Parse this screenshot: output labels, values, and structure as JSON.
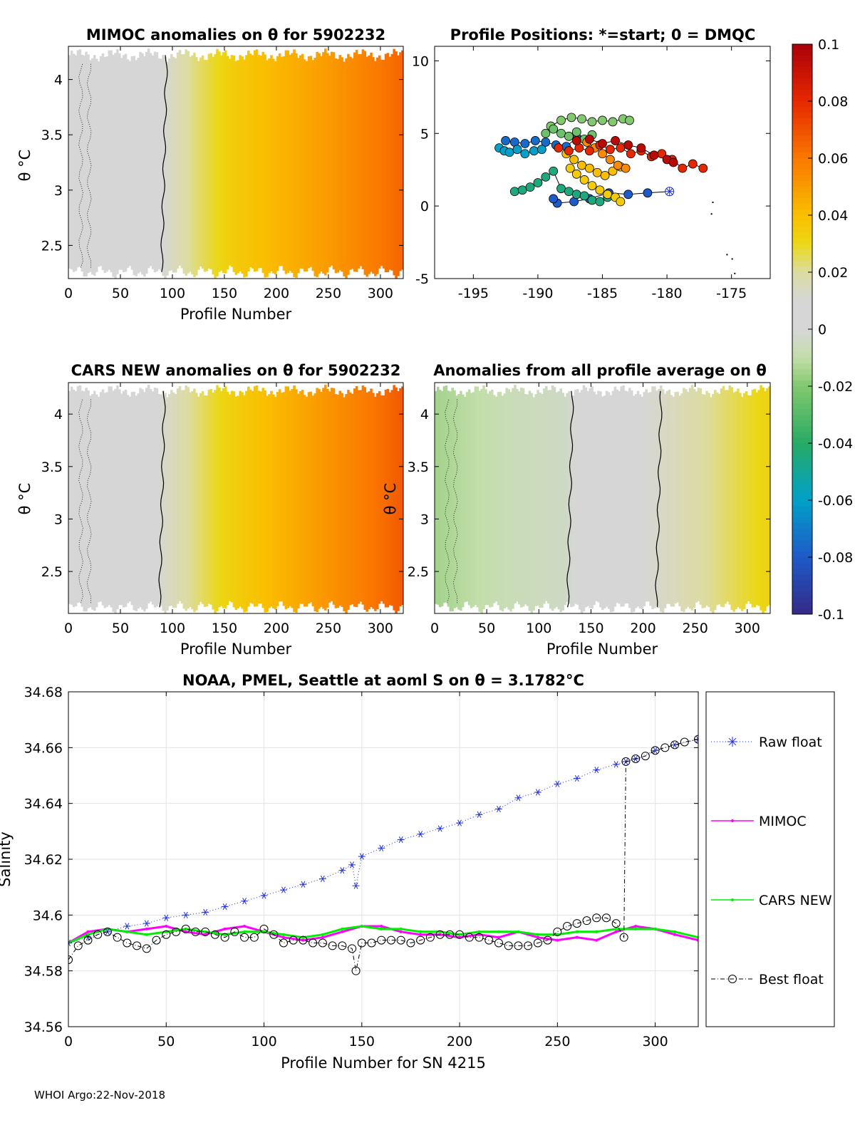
{
  "footer": "WHOI Argo:22-Nov-2018",
  "colors": {
    "raw_float": "#1f2fd8",
    "mimoc": "#ff00ff",
    "cars_new": "#00ee00",
    "best_float": "#000000",
    "gray_band": "#d6d6d6"
  },
  "chart_data": [
    {
      "type": "heatmap",
      "id": "mimoc",
      "title": "MIMOC anomalies on θ  for 5902232",
      "xlabel": "Profile Number",
      "ylabel": "θ °C",
      "xlim": [
        0,
        322
      ],
      "ylim": [
        2.2,
        4.3
      ],
      "xticks": [
        0,
        50,
        100,
        150,
        200,
        250,
        300
      ],
      "yticks": [
        2.5,
        3,
        3.5,
        4
      ],
      "column_anomaly": {
        "profile": [
          0,
          90,
          120,
          160,
          200,
          250,
          300,
          322
        ],
        "anomaly": [
          0.01,
          0.01,
          0.022,
          0.035,
          0.042,
          0.05,
          0.06,
          0.065
        ]
      },
      "contour_profile": 92
    },
    {
      "type": "scatter",
      "id": "positions",
      "title": "Profile Positions: *=start; 0 = DMQC",
      "xlim": [
        -198,
        -172
      ],
      "ylim": [
        -5,
        11
      ],
      "xticks": [
        -195,
        -190,
        -185,
        -180,
        -175
      ],
      "yticks": [
        -5,
        0,
        5,
        10
      ],
      "tracks": [
        {
          "anomaly": -0.08,
          "lon": [
            -179.8,
            -181.5,
            -183,
            -184.5,
            -186,
            -187.2,
            -188.5,
            -188.8
          ],
          "lat": [
            1,
            0.9,
            0.8,
            0.9,
            0.5,
            0.3,
            0.2,
            0.5
          ]
        },
        {
          "anomaly": -0.075,
          "lon": [
            -192.5,
            -191.8,
            -191,
            -190.2,
            -189.4,
            -188.6,
            -187.8,
            -187
          ],
          "lat": [
            4.5,
            4.4,
            4.3,
            4.5,
            4.4,
            4.2,
            4.1,
            4.7
          ]
        },
        {
          "anomaly": -0.06,
          "lon": [
            -193,
            -192.6,
            -192.2,
            -191.6,
            -191,
            -190.3,
            -189.7
          ],
          "lat": [
            4,
            3.8,
            3.7,
            3.9,
            3.6,
            3.8,
            3.9
          ]
        },
        {
          "anomaly": -0.045,
          "lon": [
            -191.8,
            -191.2,
            -190.6,
            -190,
            -189.4,
            -188.8,
            -188.2,
            -187.6,
            -187,
            -186.4,
            -185.8,
            -185.2,
            -184.6
          ],
          "lat": [
            1,
            1.1,
            1.3,
            1.6,
            2.0,
            2.4,
            1.2,
            1.0,
            0.8,
            0.7,
            0.4,
            0.3,
            0.6
          ]
        },
        {
          "anomaly": -0.02,
          "lon": [
            -189,
            -188.2,
            -187.4,
            -186.6,
            -185.8,
            -185,
            -184.2,
            -183.4,
            -182.9
          ],
          "lat": [
            5.5,
            5.9,
            6.1,
            6.0,
            5.8,
            5.9,
            5.8,
            6.0,
            5.9
          ]
        },
        {
          "anomaly": -0.025,
          "lon": [
            -189.4,
            -188.8,
            -188.2,
            -187.6,
            -187,
            -186.4,
            -185.8
          ],
          "lat": [
            5.0,
            5.3,
            5.0,
            4.8,
            5.1,
            4.6,
            4.9
          ]
        },
        {
          "anomaly": 0.035,
          "lon": [
            -187.5,
            -187,
            -186.4,
            -185.8,
            -185.2,
            -184.6,
            -184,
            -183.6
          ],
          "lat": [
            2.6,
            2.2,
            1.8,
            1.4,
            1.1,
            0.8,
            0.6,
            0.3
          ]
        },
        {
          "anomaly": 0.04,
          "lon": [
            -187.8,
            -187.2,
            -186.6,
            -186,
            -185.4,
            -184.8,
            -184.2,
            -183.6
          ],
          "lat": [
            3.6,
            3.2,
            2.8,
            2.6,
            2.3,
            2.1,
            2.4,
            2.7
          ]
        },
        {
          "anomaly": 0.055,
          "lon": [
            -186.2,
            -185.6,
            -185,
            -184.4,
            -183.8,
            -183.2
          ],
          "lat": [
            4.4,
            4.0,
            3.6,
            3.2,
            2.8,
            2.6
          ]
        },
        {
          "anomaly": 0.08,
          "lon": [
            -188.4,
            -187.6,
            -186.8,
            -186,
            -185.2,
            -184.4,
            -183.6,
            -182.8,
            -182,
            -181.2,
            -180.4,
            -179.6,
            -178.8,
            -178,
            -177.2
          ],
          "lat": [
            4.0,
            3.8,
            4.0,
            3.8,
            4.2,
            3.9,
            4.0,
            3.6,
            3.8,
            3.4,
            3.6,
            3.2,
            2.6,
            2.9,
            2.6
          ]
        },
        {
          "anomaly": 0.095,
          "lon": [
            -187,
            -186,
            -185,
            -184,
            -183,
            -182,
            -181,
            -180,
            -179.5
          ],
          "lat": [
            4.5,
            4.6,
            4.3,
            4.5,
            4.2,
            4.0,
            3.5,
            3.2,
            3.0
          ]
        }
      ],
      "start": {
        "lon": -179.8,
        "lat": 1.0
      }
    },
    {
      "type": "heatmap",
      "id": "cars",
      "title": "CARS NEW anomalies on θ for 5902232",
      "xlabel": "Profile Number",
      "ylabel": "θ °C",
      "xlim": [
        0,
        322
      ],
      "ylim": [
        2.1,
        4.3
      ],
      "xticks": [
        0,
        50,
        100,
        150,
        200,
        250,
        300
      ],
      "yticks": [
        2.5,
        3,
        3.5,
        4
      ],
      "column_anomaly": {
        "profile": [
          0,
          85,
          115,
          155,
          200,
          250,
          300,
          322
        ],
        "anomaly": [
          0.01,
          0.01,
          0.02,
          0.033,
          0.042,
          0.052,
          0.062,
          0.068
        ]
      },
      "contour_profile": 90
    },
    {
      "type": "heatmap",
      "id": "avg",
      "title": "Anomalies from all profile average on θ",
      "xlabel": "Profile Number",
      "ylabel": "θ °C",
      "xlim": [
        0,
        322
      ],
      "ylim": [
        2.1,
        4.3
      ],
      "xticks": [
        0,
        50,
        100,
        150,
        200,
        250,
        300
      ],
      "yticks": [
        2.5,
        3,
        3.5,
        4
      ],
      "column_anomaly": {
        "profile": [
          0,
          60,
          125,
          150,
          200,
          225,
          260,
          300,
          322
        ],
        "anomaly": [
          -0.015,
          -0.008,
          -0.004,
          0.006,
          0.01,
          0.014,
          0.02,
          0.028,
          0.032
        ]
      },
      "contour_profiles": [
        130,
        215
      ]
    },
    {
      "type": "line",
      "id": "salinity",
      "title": "NOAA, PMEL, Seattle at aoml S on θ = 3.1782°C",
      "xlabel": "Profile Number for SN 4215",
      "ylabel": "Salinity",
      "xlim": [
        0,
        322
      ],
      "ylim": [
        34.56,
        34.68
      ],
      "xticks": [
        0,
        50,
        100,
        150,
        200,
        250,
        300
      ],
      "yticks": [
        34.56,
        34.58,
        34.6,
        34.62,
        34.64,
        34.66,
        34.68
      ],
      "grid": true,
      "legend_position": "outside-right",
      "series": [
        {
          "name": "Raw float",
          "marker": "asterisk",
          "linestyle": "dotted",
          "x": [
            0,
            10,
            20,
            30,
            40,
            50,
            60,
            70,
            80,
            90,
            100,
            110,
            120,
            130,
            140,
            145,
            147,
            150,
            160,
            170,
            180,
            190,
            200,
            210,
            220,
            230,
            240,
            250,
            260,
            270,
            280,
            285,
            290,
            300,
            310,
            322
          ],
          "y": [
            34.59,
            34.592,
            34.594,
            34.596,
            34.597,
            34.599,
            34.6,
            34.601,
            34.603,
            34.605,
            34.607,
            34.609,
            34.611,
            34.613,
            34.616,
            34.618,
            34.6105,
            34.621,
            34.624,
            34.627,
            34.629,
            34.631,
            34.633,
            34.636,
            34.638,
            34.642,
            34.644,
            34.647,
            34.649,
            34.652,
            34.654,
            34.655,
            34.656,
            34.659,
            34.661,
            34.663
          ]
        },
        {
          "name": "MIMOC",
          "marker": "dot",
          "linestyle": "solid",
          "x": [
            0,
            10,
            20,
            30,
            40,
            50,
            60,
            70,
            80,
            90,
            100,
            110,
            120,
            130,
            140,
            150,
            160,
            170,
            180,
            190,
            200,
            210,
            220,
            230,
            240,
            250,
            260,
            270,
            280,
            290,
            300,
            310,
            322
          ],
          "y": [
            34.59,
            34.594,
            34.595,
            34.594,
            34.595,
            34.596,
            34.594,
            34.593,
            34.595,
            34.596,
            34.594,
            34.592,
            34.591,
            34.592,
            34.594,
            34.596,
            34.596,
            34.594,
            34.593,
            34.593,
            34.592,
            34.593,
            34.592,
            34.594,
            34.592,
            34.591,
            34.592,
            34.591,
            34.594,
            34.596,
            34.595,
            34.593,
            34.591
          ]
        },
        {
          "name": "CARS NEW",
          "marker": "dot",
          "linestyle": "solid",
          "x": [
            0,
            10,
            20,
            30,
            40,
            50,
            60,
            70,
            80,
            90,
            100,
            110,
            120,
            130,
            140,
            150,
            160,
            170,
            180,
            190,
            200,
            210,
            220,
            230,
            240,
            250,
            260,
            270,
            280,
            290,
            300,
            310,
            322
          ],
          "y": [
            34.59,
            34.593,
            34.595,
            34.594,
            34.593,
            34.594,
            34.595,
            34.594,
            34.593,
            34.594,
            34.594,
            34.593,
            34.592,
            34.593,
            34.595,
            34.596,
            34.595,
            34.595,
            34.594,
            34.594,
            34.593,
            34.594,
            34.594,
            34.594,
            34.593,
            34.593,
            34.594,
            34.594,
            34.595,
            34.595,
            34.595,
            34.594,
            34.592
          ]
        },
        {
          "name": "Best float",
          "marker": "circle",
          "linestyle": "dashdot",
          "x": [
            0,
            5,
            10,
            15,
            20,
            25,
            30,
            35,
            40,
            45,
            50,
            55,
            60,
            65,
            70,
            75,
            80,
            85,
            90,
            95,
            100,
            105,
            110,
            115,
            120,
            125,
            130,
            135,
            140,
            145,
            147,
            150,
            155,
            160,
            165,
            170,
            175,
            180,
            185,
            190,
            195,
            200,
            205,
            210,
            215,
            220,
            225,
            230,
            235,
            240,
            245,
            250,
            255,
            260,
            265,
            270,
            275,
            280,
            284,
            285,
            290,
            295,
            300,
            305,
            310,
            315,
            322
          ],
          "y": [
            34.584,
            34.589,
            34.591,
            34.593,
            34.594,
            34.592,
            34.59,
            34.589,
            34.588,
            34.591,
            34.593,
            34.594,
            34.595,
            34.594,
            34.594,
            34.593,
            34.592,
            34.594,
            34.592,
            34.592,
            34.595,
            34.593,
            34.59,
            34.591,
            34.591,
            34.59,
            34.59,
            34.589,
            34.589,
            34.588,
            34.58,
            34.59,
            34.59,
            34.591,
            34.591,
            34.591,
            34.59,
            34.591,
            34.592,
            34.593,
            34.593,
            34.593,
            34.592,
            34.592,
            34.591,
            34.59,
            34.589,
            34.589,
            34.589,
            34.59,
            34.591,
            34.594,
            34.596,
            34.597,
            34.598,
            34.599,
            34.599,
            34.597,
            34.592,
            34.655,
            34.656,
            34.657,
            34.659,
            34.66,
            34.661,
            34.662,
            34.663
          ]
        }
      ]
    }
  ],
  "colorbar": {
    "ticks": [
      0.1,
      0.08,
      0.06,
      0.04,
      0.02,
      0,
      -0.02,
      -0.04,
      -0.06,
      -0.08,
      -0.1
    ],
    "labels": [
      "0.1",
      "0.08",
      "0.06",
      "0.04",
      "0.02",
      "0",
      "-0.02",
      "-0.04",
      "-0.06",
      "-0.08",
      "-0.1"
    ],
    "range": [
      -0.1,
      0.1
    ]
  }
}
